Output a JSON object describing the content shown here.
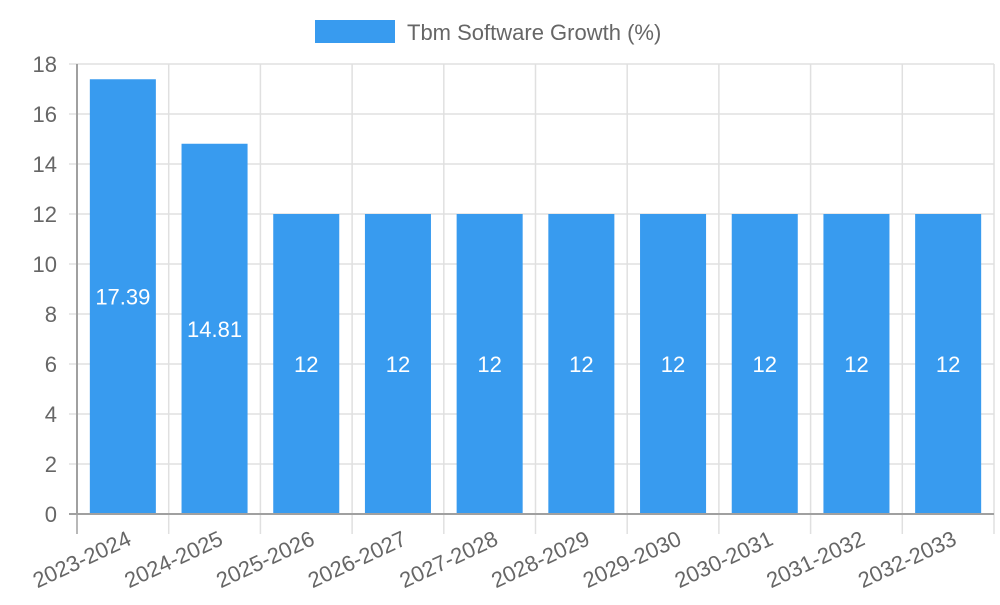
{
  "chart_data": {
    "type": "bar",
    "title": "",
    "xlabel": "",
    "ylabel": "",
    "categories": [
      "2023-2024",
      "2024-2025",
      "2025-2026",
      "2026-2027",
      "2027-2028",
      "2028-2029",
      "2029-2030",
      "2030-2031",
      "2031-2032",
      "2032-2033"
    ],
    "series": [
      {
        "name": "Tbm Software Growth (%)",
        "values": [
          17.39,
          14.81,
          12,
          12,
          12,
          12,
          12,
          12,
          12,
          12
        ],
        "color": "#389bef"
      }
    ],
    "value_labels": [
      "17.39",
      "14.81",
      "12",
      "12",
      "12",
      "12",
      "12",
      "12",
      "12",
      "12"
    ],
    "ylim": [
      0,
      18
    ],
    "yticks": [
      0,
      2,
      4,
      6,
      8,
      10,
      12,
      14,
      16,
      18
    ],
    "grid": true,
    "legend_position": "top"
  },
  "legend": {
    "label": "Tbm Software Growth (%)",
    "color": "#389bef"
  },
  "colors": {
    "bar": "#389bef",
    "grid": "#e0e0e0",
    "axis": "#a0a0a0",
    "tick_text": "#666666",
    "value_label": "#ffffff"
  }
}
